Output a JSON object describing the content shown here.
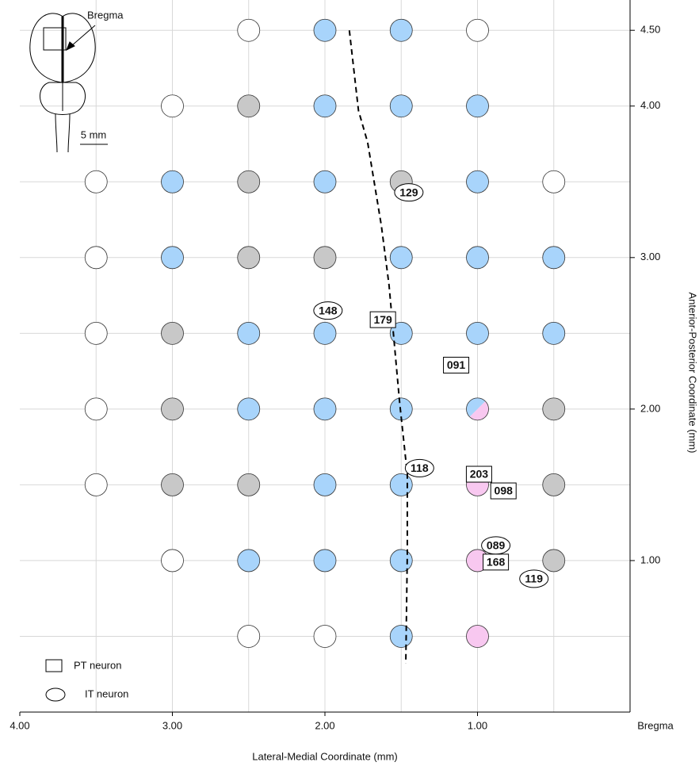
{
  "chart_data": {
    "type": "scatter",
    "x_label": "Lateral-Medial Coordinate (mm)",
    "y_label": "Anterior-Posterior Coordinate (mm)",
    "x_end_label": "Bregma",
    "xlim": [
      4,
      0
    ],
    "ylim": [
      0,
      4.7
    ],
    "xticks": [
      {
        "value": 4,
        "label": "4.00"
      },
      {
        "value": 3,
        "label": "3.00"
      },
      {
        "value": 2,
        "label": "2.00"
      },
      {
        "value": 1,
        "label": "1.00"
      }
    ],
    "yticks": [
      {
        "value": 1,
        "label": "1.00"
      },
      {
        "value": 2,
        "label": "2.00"
      },
      {
        "value": 3,
        "label": "3.00"
      },
      {
        "value": 4,
        "label": "4.00"
      },
      {
        "value": 4.5,
        "label": "4.50"
      }
    ],
    "x_grid": [
      3.5,
      3,
      2.5,
      2,
      1.5,
      1,
      0.5
    ],
    "y_grid": [
      0.5,
      1,
      1.5,
      2,
      2.5,
      3,
      3.5,
      4,
      4.5
    ],
    "grid": true,
    "series": [
      {
        "color": "#ffffff",
        "x": [
          2.5,
          1,
          3,
          3.5,
          0.5,
          3.5,
          3.5,
          3.5,
          3.5,
          3,
          2.5,
          2
        ],
        "y": [
          4.5,
          4.5,
          4,
          3.5,
          3.5,
          3,
          2.5,
          2,
          1.5,
          1,
          0.5,
          0.5
        ]
      },
      {
        "color": "#c8c8c8",
        "x": [
          2.5,
          2.5,
          1.5,
          2.5,
          2,
          3,
          3,
          0.5,
          3,
          2.5,
          0.5,
          0.5
        ],
        "y": [
          4,
          3.5,
          3.5,
          3,
          3,
          2.5,
          2,
          2,
          1.5,
          1.5,
          1.5,
          1
        ]
      },
      {
        "color": "#a8d4fb",
        "x": [
          2,
          1.5,
          2,
          1.5,
          1,
          3,
          2,
          1,
          3,
          1.5,
          1,
          0.5,
          2.5,
          2,
          1.5,
          1,
          0.5,
          2.5,
          2,
          1.5,
          2,
          1.5,
          2.5,
          2,
          1.5,
          1.5
        ],
        "y": [
          4.5,
          4.5,
          4,
          4,
          4,
          3.5,
          3.5,
          3.5,
          3,
          3,
          3,
          3,
          2.5,
          2.5,
          2.5,
          2.5,
          2.5,
          2,
          2,
          2,
          1.5,
          1.5,
          1,
          1,
          1,
          0.5
        ]
      },
      {
        "color": "#f8c8f0",
        "x": [
          1,
          1,
          1
        ],
        "y": [
          1.5,
          1,
          0.5
        ]
      },
      {
        "color": "#a8d4fb",
        "color2": "#f8c8f0",
        "x": [
          1
        ],
        "y": [
          2
        ]
      }
    ],
    "line": {
      "x": [
        1.84,
        1.78,
        1.72,
        1.63,
        1.58,
        1.51,
        1.46,
        1.46,
        1.47
      ],
      "y": [
        4.5,
        3.97,
        3.76,
        3.21,
        2.82,
        2.04,
        1.57,
        1.05,
        0.32
      ]
    },
    "annotations": [
      {
        "text": "129",
        "kind": "IT",
        "x": 1.45,
        "y": 3.43
      },
      {
        "text": "148",
        "kind": "IT",
        "x": 1.98,
        "y": 2.65
      },
      {
        "text": "179",
        "kind": "PT",
        "x": 1.62,
        "y": 2.59
      },
      {
        "text": "091",
        "kind": "PT",
        "x": 1.14,
        "y": 2.29
      },
      {
        "text": "118",
        "kind": "IT",
        "x": 1.38,
        "y": 1.61
      },
      {
        "text": "203",
        "kind": "PT",
        "x": 0.99,
        "y": 1.57
      },
      {
        "text": "098",
        "kind": "PT",
        "x": 0.83,
        "y": 1.46
      },
      {
        "text": "089",
        "kind": "IT",
        "x": 0.88,
        "y": 1.1
      },
      {
        "text": "168",
        "kind": "PT",
        "x": 0.88,
        "y": 0.99
      },
      {
        "text": "119",
        "kind": "IT",
        "x": 0.63,
        "y": 0.88
      }
    ],
    "legend": [
      {
        "kind": "PT",
        "label": "PT neuron"
      },
      {
        "kind": "IT",
        "label": "IT neuron"
      }
    ],
    "inset": {
      "label": "Bregma",
      "scale": "5 mm"
    }
  }
}
